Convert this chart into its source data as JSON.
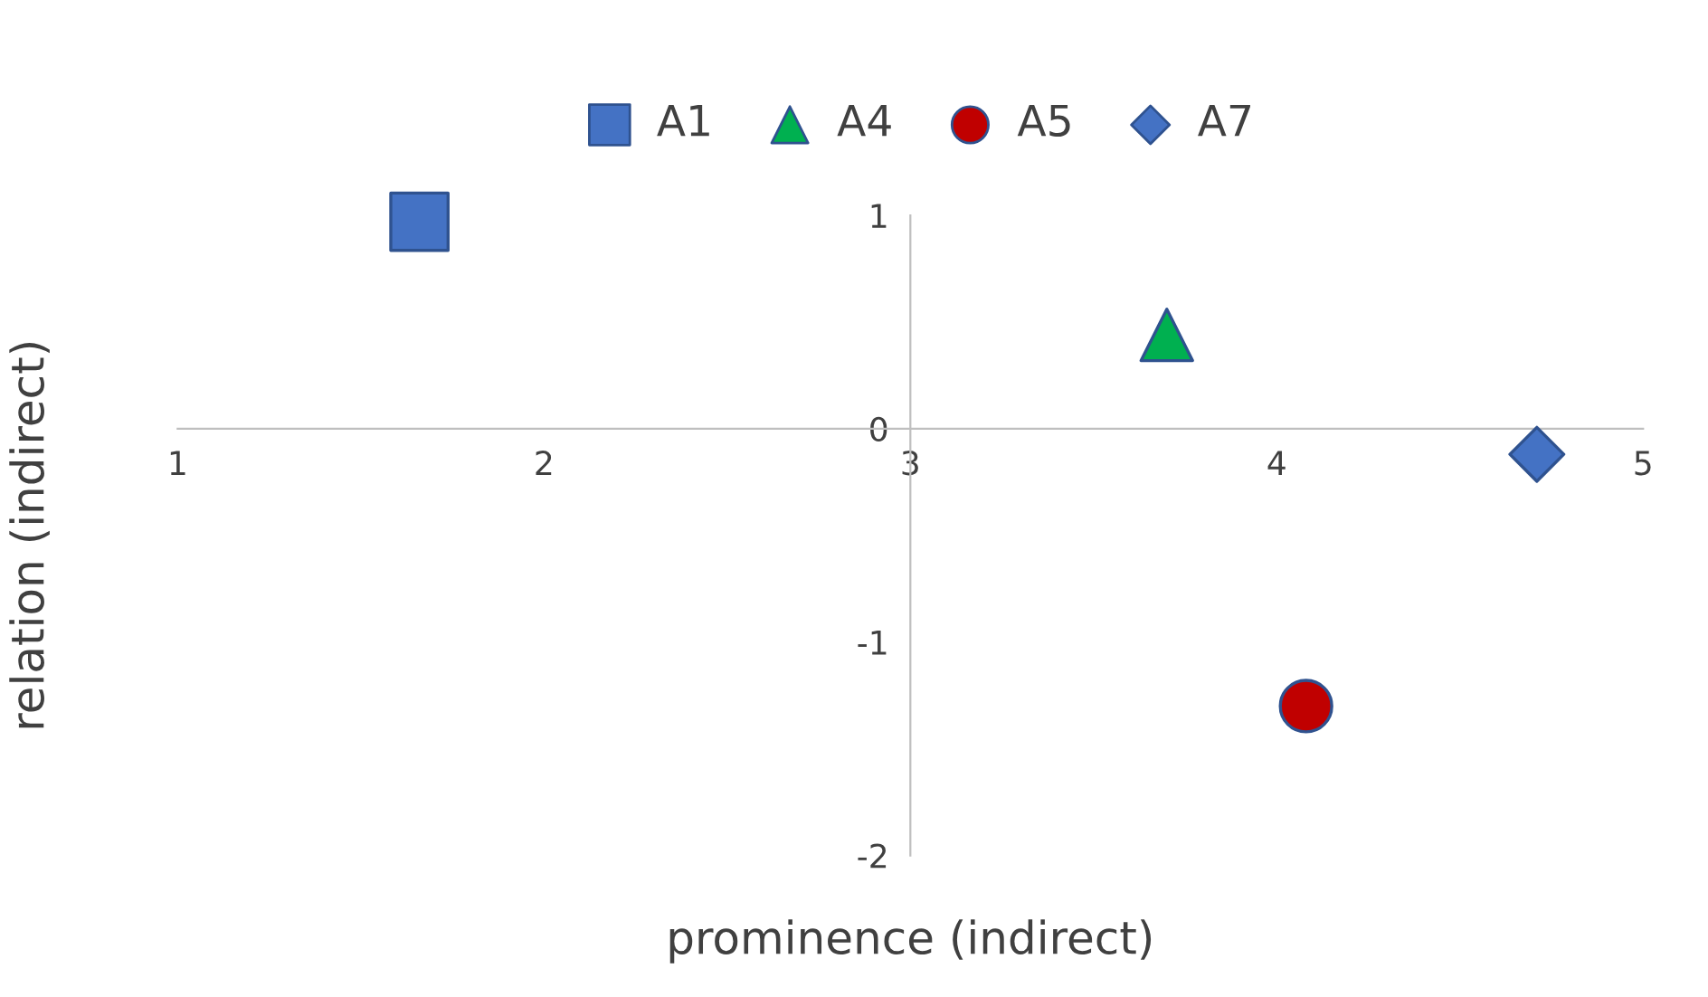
{
  "chart_data": {
    "type": "scatter",
    "xlabel": "prominence (indirect)",
    "ylabel": "relation (indirect)",
    "series": [
      {
        "name": "A1",
        "color": "#4472c4",
        "marker": "square",
        "x": [
          1.66
        ],
        "values": [
          0.97
        ]
      },
      {
        "name": "A4",
        "color": "#00b050",
        "marker": "triangle",
        "x": [
          3.7
        ],
        "values": [
          0.44
        ]
      },
      {
        "name": "A5",
        "color": "#c00000",
        "marker": "circle",
        "x": [
          4.08
        ],
        "values": [
          -1.3
        ]
      },
      {
        "name": "A7",
        "color": "#4472c4",
        "marker": "diamond",
        "x": [
          4.71
        ],
        "values": [
          -0.12
        ]
      }
    ],
    "xlim": [
      1,
      5
    ],
    "xticks": [
      1,
      2,
      3,
      4,
      5
    ],
    "ylim": [
      -2,
      1
    ],
    "yticks": [
      -2,
      -1,
      0,
      1
    ],
    "grid": false,
    "legend": "top"
  }
}
